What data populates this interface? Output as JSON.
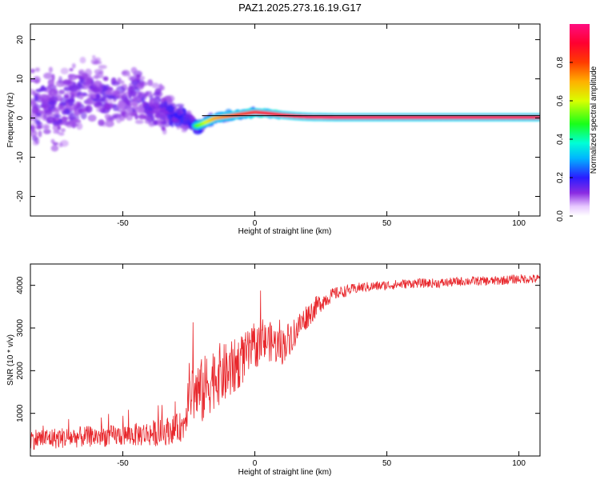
{
  "figure": {
    "title": "PAZ1.2025.273.16.19.G17"
  },
  "chart_data": [
    {
      "type": "heatmap",
      "title": "PAZ1.2025.273.16.19.G17",
      "xlabel": "Height of straight line (km)",
      "ylabel": "Frequency (Hz)",
      "xlim": [
        -85,
        108
      ],
      "ylim": [
        -25,
        24
      ],
      "xticks": [
        -50,
        0,
        50,
        100
      ],
      "yticks": [
        -20,
        -10,
        0,
        10,
        20
      ],
      "xtick_labels": [
        "-50",
        "0",
        "50",
        "100"
      ],
      "ytick_labels": [
        "-20",
        "-10",
        "0",
        "10",
        "20"
      ],
      "reference_line": {
        "from_x": -20,
        "frequency": 0.6
      },
      "ridge": {
        "x": [
          -85,
          -80,
          -75,
          -70,
          -65,
          -60,
          -55,
          -50,
          -45,
          -40,
          -35,
          -30,
          -25,
          -22,
          -20,
          -15,
          -10,
          -5,
          0,
          5,
          10,
          15,
          20,
          30,
          40,
          50,
          60,
          70,
          80,
          90,
          100,
          108
        ],
        "freq": [
          4,
          3,
          2,
          4,
          6,
          7,
          5,
          5,
          6,
          3,
          2,
          1,
          -1,
          -2,
          -1.5,
          0,
          0.5,
          1,
          1.5,
          1.2,
          0.8,
          0.5,
          0.3,
          0.2,
          0.2,
          0.2,
          0.2,
          0.2,
          0.2,
          0.2,
          0.2,
          0.2
        ],
        "amp": [
          0.3,
          0.3,
          0.3,
          0.3,
          0.3,
          0.3,
          0.3,
          0.28,
          0.3,
          0.32,
          0.35,
          0.4,
          0.45,
          0.5,
          0.55,
          0.7,
          0.75,
          0.8,
          0.85,
          0.9,
          0.9,
          0.92,
          0.95,
          0.95,
          0.95,
          0.95,
          0.95,
          0.95,
          0.95,
          0.95,
          0.95,
          0.95
        ],
        "spread": [
          14,
          12,
          12,
          12,
          12,
          10,
          9,
          9,
          8,
          7,
          6,
          4,
          2.5,
          2,
          1.8,
          1.2,
          1,
          0.8,
          0.8,
          0.7,
          0.6,
          0.5,
          0.5,
          0.5,
          0.5,
          0.5,
          0.5,
          0.5,
          0.5,
          0.5,
          0.5,
          0.5
        ]
      },
      "colorbar": {
        "label": "Normalized spectral amplitude",
        "range": [
          0,
          1
        ],
        "ticks": [
          0.0,
          0.2,
          0.4,
          0.6,
          0.8
        ],
        "tick_labels": [
          "0.0",
          "0.2",
          "0.4",
          "0.6",
          "0.8"
        ]
      }
    },
    {
      "type": "line",
      "xlabel": "Height of straight line (km)",
      "ylabel": "SNR (10 * v/v)",
      "xlim": [
        -85,
        108
      ],
      "ylim": [
        0,
        4500
      ],
      "xticks": [
        -50,
        0,
        50,
        100
      ],
      "yticks": [
        1000,
        2000,
        3000,
        4000
      ],
      "xtick_labels": [
        "-50",
        "0",
        "50",
        "100"
      ],
      "ytick_labels": [
        "1000",
        "2000",
        "3000",
        "4000"
      ],
      "series": [
        {
          "name": "SNR",
          "color": "#e8272c",
          "trend_x": [
            -85,
            -75,
            -65,
            -55,
            -45,
            -35,
            -27,
            -25,
            -20,
            -15,
            -10,
            -5,
            0,
            5,
            10,
            15,
            20,
            25,
            30,
            40,
            50,
            60,
            70,
            80,
            90,
            100,
            108
          ],
          "trend_y": [
            400,
            420,
            450,
            470,
            500,
            550,
            700,
            1500,
            1500,
            1900,
            1950,
            2250,
            2550,
            2700,
            2550,
            2900,
            3300,
            3600,
            3800,
            3950,
            4000,
            4050,
            4050,
            4100,
            4100,
            4150,
            4150
          ],
          "noise_x": [
            -85,
            -50,
            -40,
            -27,
            -25,
            -20,
            -10,
            0,
            10,
            20,
            30,
            40,
            60,
            108
          ],
          "noise_amp": [
            250,
            250,
            300,
            350,
            700,
            800,
            700,
            500,
            450,
            300,
            150,
            120,
            110,
            110
          ]
        }
      ]
    }
  ]
}
